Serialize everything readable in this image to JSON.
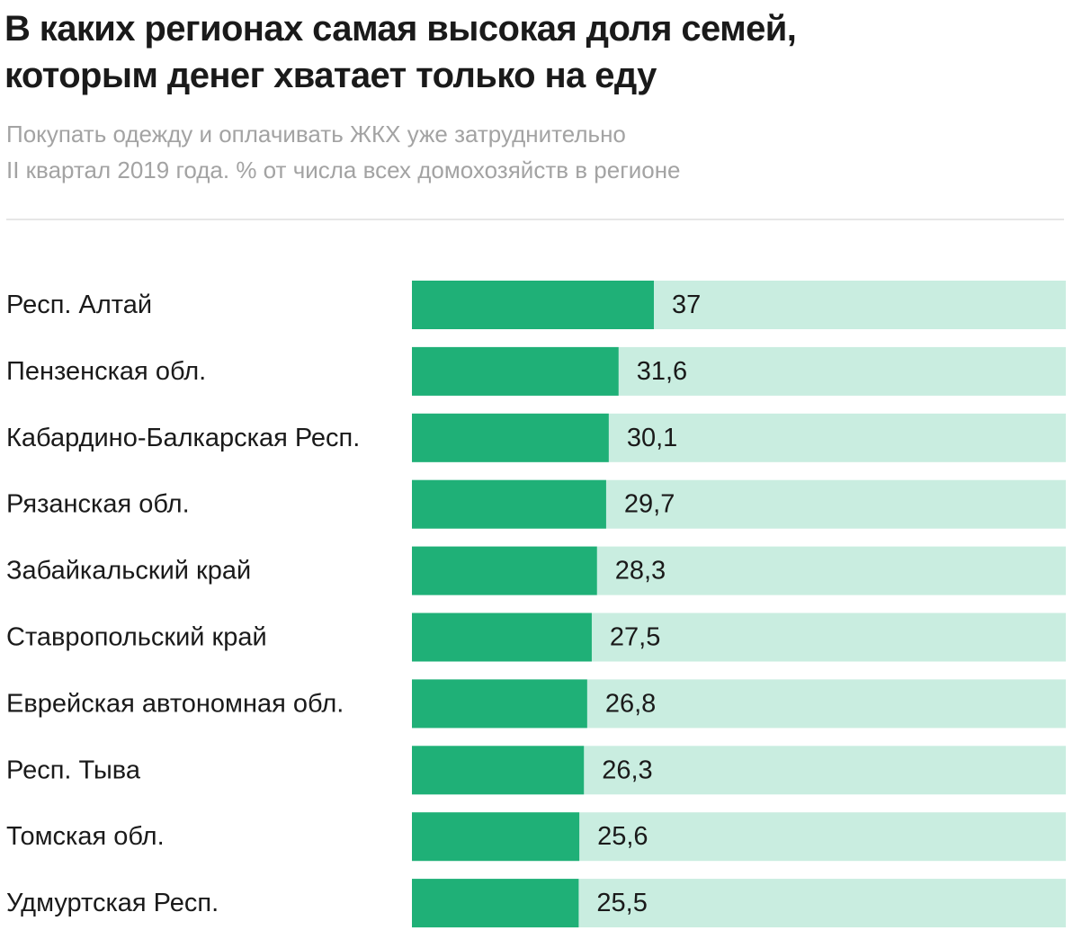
{
  "chart_data": {
    "type": "bar",
    "orientation": "horizontal",
    "title_lines": [
      "В каких регионах самая высокая доля семей,",
      "которым денег хватает только на еду"
    ],
    "subtitle_lines": [
      "Покупать одежду и оплачивать ЖКХ уже затруднительно",
      "II квартал 2019 года. % от числа всех домохозяйств в регионе"
    ],
    "categories": [
      "Респ. Алтай",
      "Пензенская обл.",
      "Кабардино-Балкарская Респ.",
      "Рязанская обл.",
      "Забайкальский край",
      "Ставропольский край",
      "Еврейская автономная обл.",
      "Респ. Тыва",
      "Томская обл.",
      "Удмуртская Респ."
    ],
    "values": [
      37,
      31.6,
      30.1,
      29.7,
      28.3,
      27.5,
      26.8,
      26.3,
      25.6,
      25.5
    ],
    "value_labels": [
      "37",
      "31,6",
      "30,1",
      "29,7",
      "28,3",
      "27,5",
      "26,8",
      "26,3",
      "25,6",
      "25,5"
    ],
    "xlim": [
      0,
      100
    ],
    "grid": false,
    "legend": false,
    "colors": {
      "bar": "#1fb077",
      "track": "#c9ede0",
      "text": "#1a1a1a",
      "subtitle": "#a3a3a3",
      "divider": "#e6e6e6"
    }
  }
}
